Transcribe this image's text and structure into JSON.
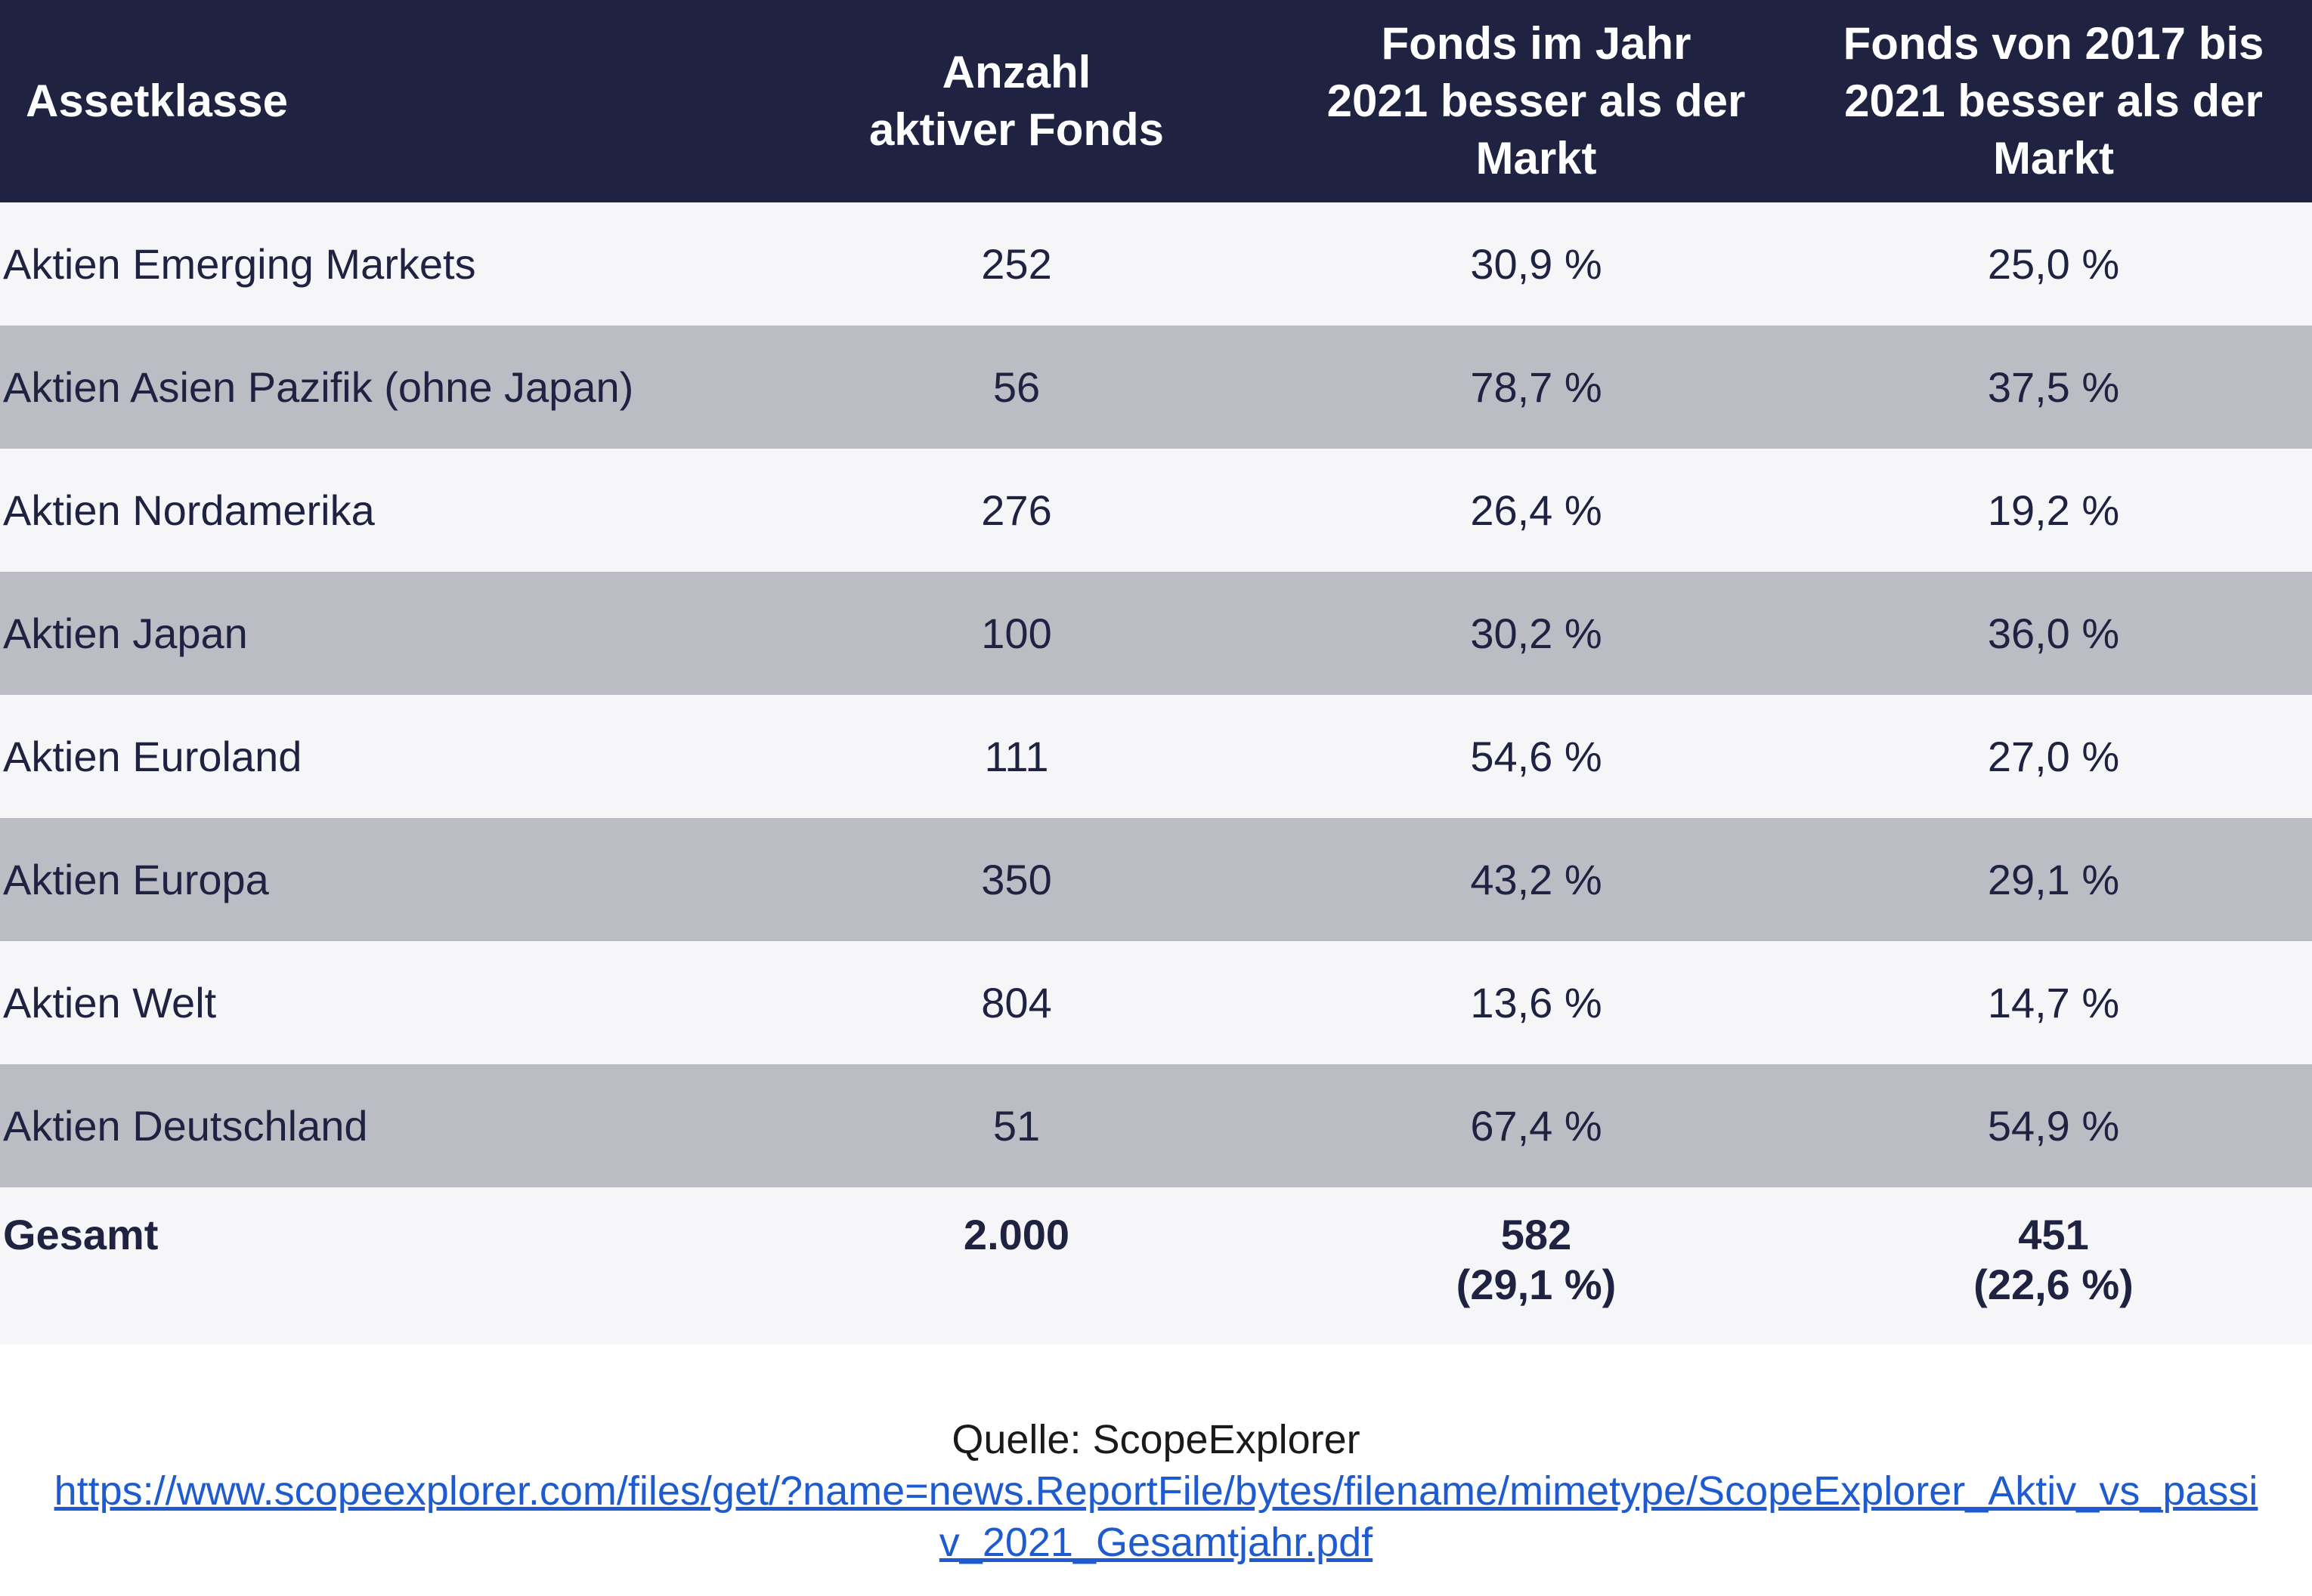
{
  "header": {
    "col1": "Assetklasse",
    "col2": "Anzahl\naktiver Fonds",
    "col3": "Fonds im Jahr\n2021 besser als der\nMarkt",
    "col4": "Fonds von 2017 bis\n2021 besser als der\nMarkt"
  },
  "rows": [
    {
      "asset": "Aktien Emerging Markets",
      "count": "252",
      "y2021": "30,9 %",
      "y2017_2021": "25,0 %"
    },
    {
      "asset": "Aktien Asien Pazifik (ohne Japan)",
      "count": "56",
      "y2021": "78,7 %",
      "y2017_2021": "37,5 %"
    },
    {
      "asset": "Aktien Nordamerika",
      "count": "276",
      "y2021": "26,4 %",
      "y2017_2021": "19,2 %"
    },
    {
      "asset": "Aktien Japan",
      "count": "100",
      "y2021": "30,2 %",
      "y2017_2021": "36,0 %"
    },
    {
      "asset": "Aktien Euroland",
      "count": "111",
      "y2021": "54,6 %",
      "y2017_2021": "27,0 %"
    },
    {
      "asset": "Aktien Europa",
      "count": "350",
      "y2021": "43,2 %",
      "y2017_2021": "29,1 %"
    },
    {
      "asset": "Aktien Welt",
      "count": "804",
      "y2021": "13,6 %",
      "y2017_2021": "14,7 %"
    },
    {
      "asset": "Aktien Deutschland",
      "count": "51",
      "y2021": "67,4 %",
      "y2017_2021": "54,9 %"
    }
  ],
  "total": {
    "label": "Gesamt",
    "count": "2.000",
    "y2021": "582\n(29,1 %)",
    "y2017_2021": "451\n(22,6 %)"
  },
  "source": {
    "label": "Quelle: ScopeExplorer",
    "url": "https://www.scopeexplorer.com/files/get/?name=news.ReportFile/bytes/filename/mimetype/ScopeExplorer_Aktiv_vs_passiv_2021_Gesamtjahr.pdf"
  },
  "colors": {
    "header_bg": "#1f2240",
    "row_light": "#f6f6f8",
    "row_dark": "#bbbcc4",
    "link": "#1f5bd0"
  }
}
